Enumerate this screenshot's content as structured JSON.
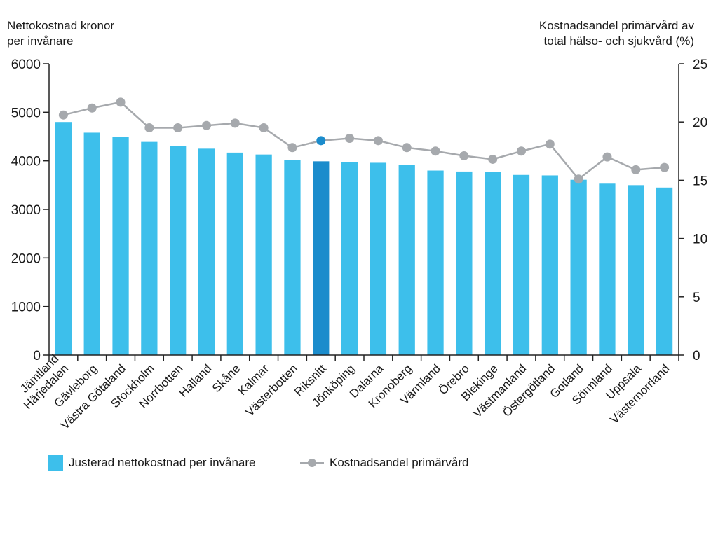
{
  "chart_data": {
    "type": "bar",
    "title": "",
    "ylabel": "Nettokostnad kronor\nper invånare",
    "y2label": "Kostnadsandel primärvård av\ntotal hälso- och sjukvård (%)",
    "ylim": [
      0,
      6000
    ],
    "y2lim": [
      0,
      25
    ],
    "yticks": [
      0,
      1000,
      2000,
      3000,
      4000,
      5000,
      6000
    ],
    "y2ticks": [
      0,
      5,
      10,
      15,
      20,
      25
    ],
    "categories": [
      "Jämtland\nHärjedalen",
      "Gävleborg",
      "Västra Götaland",
      "Stockholm",
      "Norrbotten",
      "Halland",
      "Skåne",
      "Kalmar",
      "Västerbotten",
      "Riksnitt",
      "Jönköping",
      "Dalarna",
      "Kronoberg",
      "Värmland",
      "Örebro",
      "Blekinge",
      "Västmanland",
      "Östergötland",
      "Gotland",
      "Sörmland",
      "Uppsala",
      "Västernorrland"
    ],
    "highlight_index": 9,
    "series": [
      {
        "name": "Justerad nettokostnad per invånare",
        "type": "bar",
        "axis": "left",
        "color": "#3dbfeb",
        "highlight_color": "#1b8ccc",
        "values": [
          4800,
          4580,
          4500,
          4390,
          4310,
          4250,
          4170,
          4130,
          4020,
          3990,
          3970,
          3960,
          3910,
          3800,
          3780,
          3770,
          3710,
          3700,
          3610,
          3530,
          3500,
          3450
        ]
      },
      {
        "name": "Kostnadsandel primärvård",
        "type": "line",
        "axis": "right",
        "color": "#a6a9ad",
        "highlight_color": "#1b8ccc",
        "values": [
          20.6,
          21.2,
          21.7,
          19.5,
          19.5,
          19.7,
          19.9,
          19.5,
          17.8,
          18.4,
          18.6,
          18.4,
          17.8,
          17.5,
          17.1,
          16.8,
          17.5,
          18.1,
          15.1,
          17.0,
          15.9,
          16.1
        ]
      }
    ],
    "legend": "bottom-left"
  }
}
